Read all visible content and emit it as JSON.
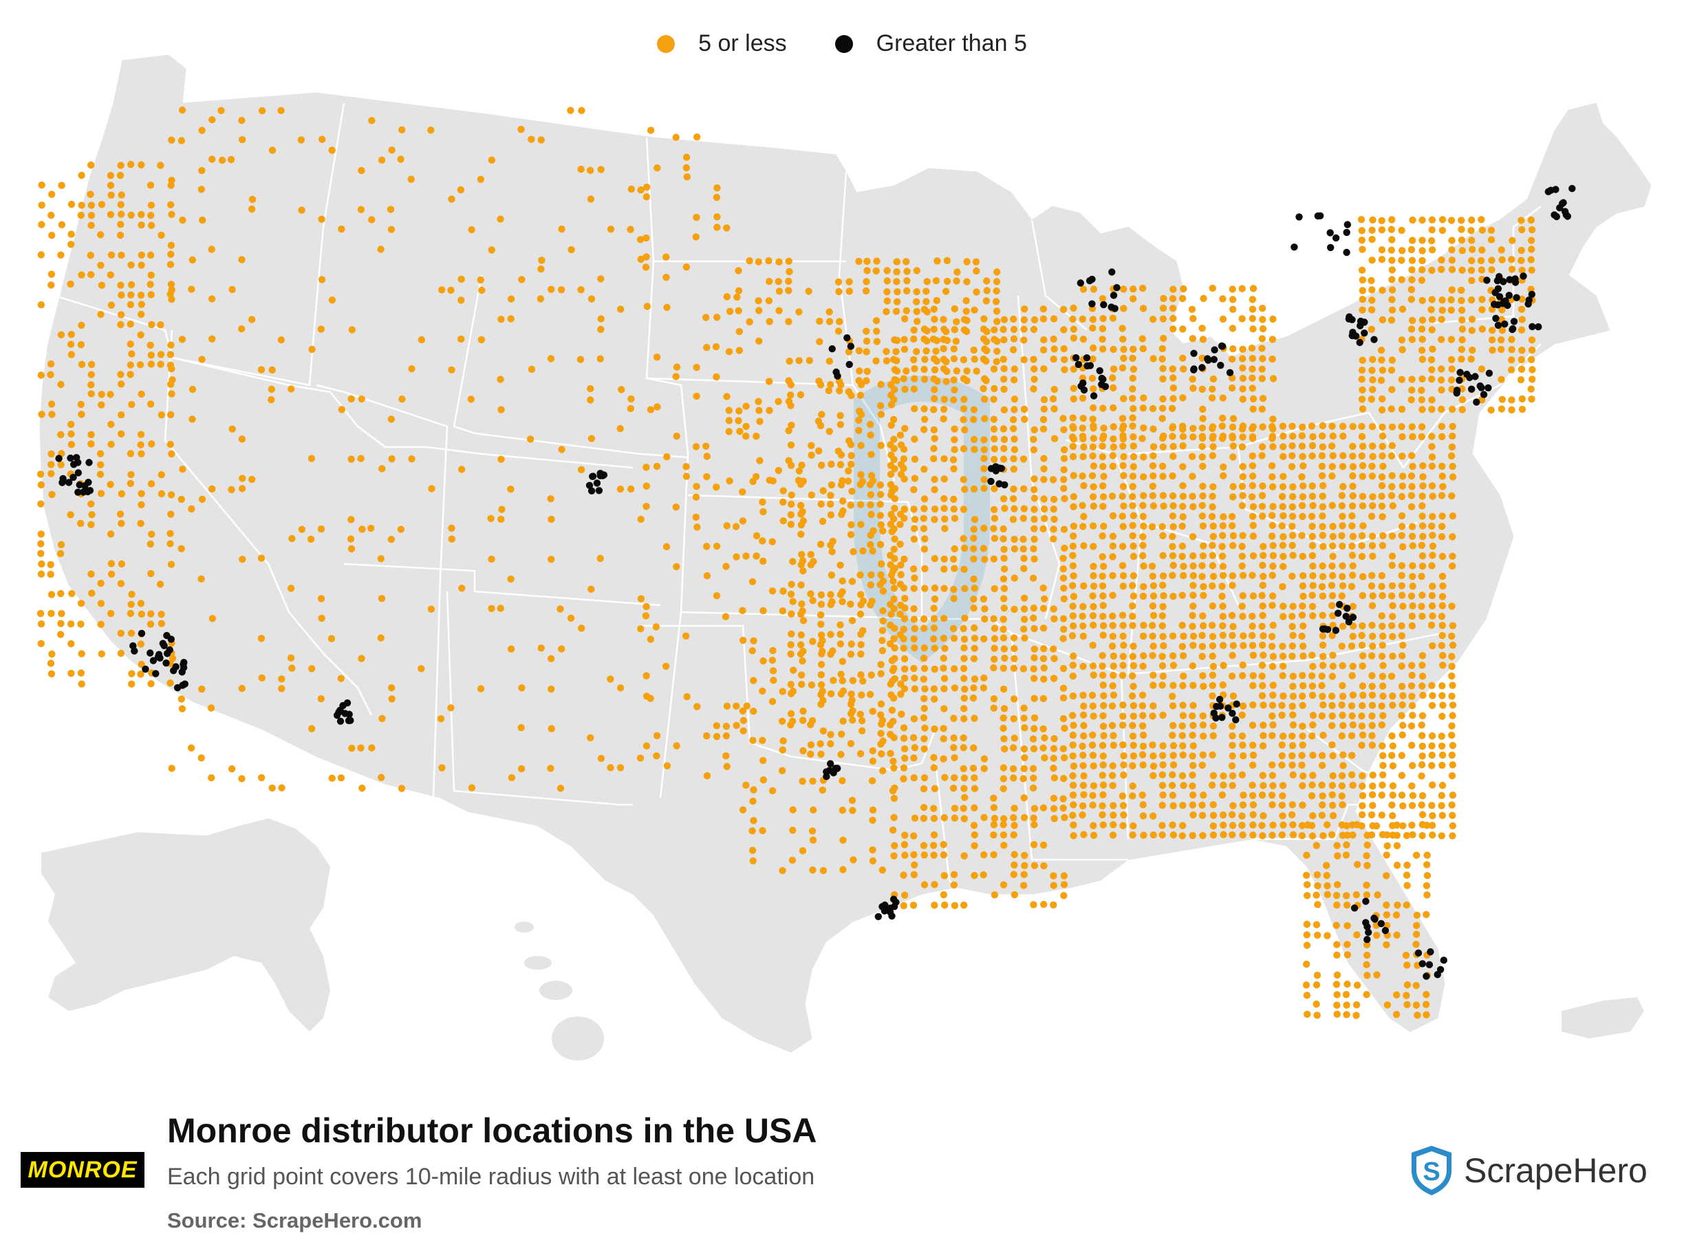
{
  "legend": {
    "items": [
      {
        "label": "5 or less",
        "color": "#f5a00f"
      },
      {
        "label": "Greater than 5",
        "color": "#0a0a0a"
      }
    ]
  },
  "footer": {
    "title": "Monroe distributor locations in the USA",
    "subtitle": "Each grid point covers 10-mile radius with at least one location",
    "source": "Source: ScrapeHero.com"
  },
  "logos": {
    "brand": "MONROE",
    "brand_colors": {
      "background": "#000000",
      "text": "#ffe600"
    },
    "publisher": "ScrapeHero",
    "publisher_icon": "shield-s-icon",
    "publisher_color": "#2a8cc9"
  },
  "map": {
    "land_color": "#e4e4e4",
    "border_color": "#ffffff"
  }
}
